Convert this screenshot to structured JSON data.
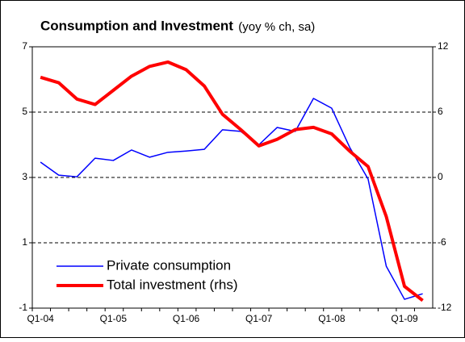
{
  "chart_data": {
    "type": "line",
    "title": "Consumption and Investment",
    "subtitle": "(yoy % ch, sa)",
    "categories": [
      "Q1-04",
      null,
      null,
      null,
      "Q1-05",
      null,
      null,
      null,
      "Q1-06",
      null,
      null,
      null,
      "Q1-07",
      null,
      null,
      null,
      "Q1-08",
      null,
      null,
      null,
      "Q1-09",
      null
    ],
    "series": [
      {
        "name": "Private consumption",
        "color": "#0000ff",
        "values": [
          3.47,
          3.07,
          3.02,
          3.59,
          3.52,
          3.84,
          3.62,
          3.77,
          3.81,
          3.86,
          4.46,
          4.41,
          4.0,
          4.53,
          4.41,
          5.42,
          5.12,
          3.91,
          2.95,
          0.28,
          -0.73,
          -0.56
        ]
      },
      {
        "name": "Total investment (rhs)",
        "color": "#ff0000",
        "axis": "y2",
        "values": [
          9.2,
          8.7,
          7.2,
          6.7,
          8.0,
          9.3,
          10.2,
          10.6,
          9.9,
          8.4,
          5.8,
          4.4,
          2.9,
          3.5,
          4.4,
          4.6,
          4.0,
          2.4,
          1.0,
          -3.6,
          -10.0,
          -11.3
        ]
      }
    ],
    "ylim": [
      -1,
      7
    ],
    "yticks": [
      -1,
      1,
      3,
      5,
      7
    ],
    "y2lim": [
      -12,
      12
    ],
    "y2ticks": [
      -12,
      -6,
      0,
      6,
      12
    ],
    "grid": true,
    "legend": "lower left"
  }
}
